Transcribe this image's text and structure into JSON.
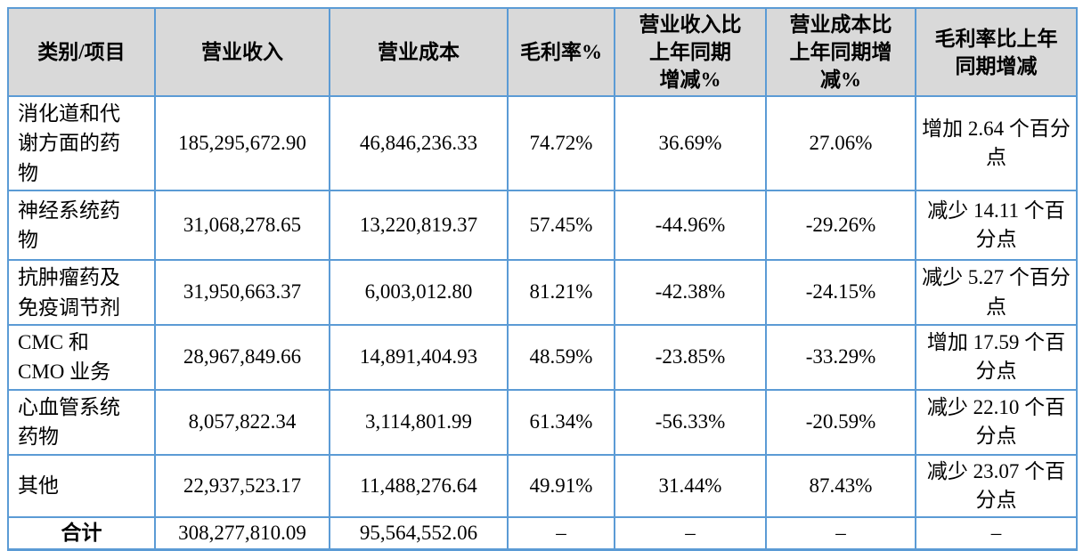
{
  "colors": {
    "border": "#5b9bd5",
    "header_bg": "#d9d9d9",
    "text": "#000000",
    "body_bg": "#ffffff"
  },
  "table": {
    "columns": [
      "类别/项目",
      "营业收入",
      "营业成本",
      "毛利率%",
      "营业收入比\n上年同期\n增减%",
      "营业成本比\n上年同期增\n减%",
      "毛利率比上年\n同期增减"
    ],
    "rows": [
      {
        "category": "消化道和代谢方面的药物",
        "revenue": "185,295,672.90",
        "cost": "46,846,236.33",
        "margin": "74.72%",
        "rev_yoy": "36.69%",
        "cost_yoy": "27.06%",
        "margin_yoy": "增加 2.64 个百分点",
        "total": false
      },
      {
        "category": "神经系统药物",
        "revenue": "31,068,278.65",
        "cost": "13,220,819.37",
        "margin": "57.45%",
        "rev_yoy": "-44.96%",
        "cost_yoy": "-29.26%",
        "margin_yoy": "减少 14.11 个百分点",
        "total": false
      },
      {
        "category": "抗肿瘤药及免疫调节剂",
        "revenue": "31,950,663.37",
        "cost": "6,003,012.80",
        "margin": "81.21%",
        "rev_yoy": "-42.38%",
        "cost_yoy": "-24.15%",
        "margin_yoy": "减少 5.27 个百分点",
        "total": false
      },
      {
        "category": "CMC 和 CMO 业务",
        "revenue": "28,967,849.66",
        "cost": "14,891,404.93",
        "margin": "48.59%",
        "rev_yoy": "-23.85%",
        "cost_yoy": "-33.29%",
        "margin_yoy": "增加 17.59 个百分点",
        "total": false
      },
      {
        "category": "心血管系统药物",
        "revenue": "8,057,822.34",
        "cost": "3,114,801.99",
        "margin": "61.34%",
        "rev_yoy": "-56.33%",
        "cost_yoy": "-20.59%",
        "margin_yoy": "减少 22.10 个百分点",
        "total": false
      },
      {
        "category": "其他",
        "revenue": "22,937,523.17",
        "cost": "11,488,276.64",
        "margin": "49.91%",
        "rev_yoy": "31.44%",
        "cost_yoy": "87.43%",
        "margin_yoy": "减少 23.07 个百分点",
        "total": false
      },
      {
        "category": "合计",
        "revenue": "308,277,810.09",
        "cost": "95,564,552.06",
        "margin": "–",
        "rev_yoy": "–",
        "cost_yoy": "–",
        "margin_yoy": "–",
        "total": true
      }
    ]
  }
}
